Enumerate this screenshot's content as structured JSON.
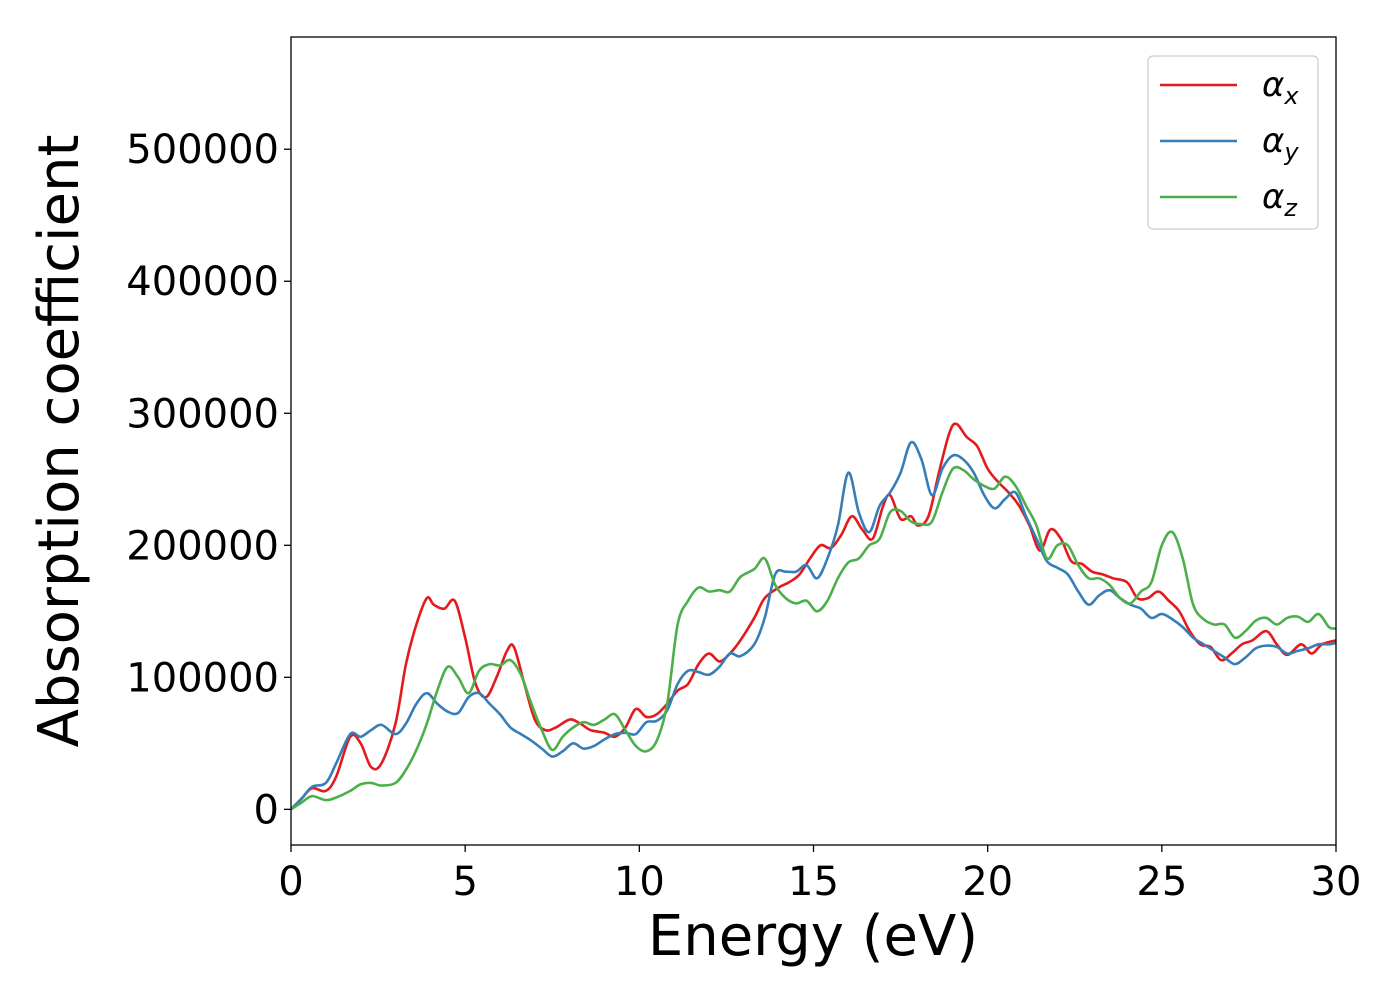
{
  "chart_data": {
    "type": "line",
    "title": "",
    "xlabel": "Energy (eV)",
    "ylabel": "Absorption coefficient",
    "xlim": [
      0,
      30
    ],
    "ylim": [
      -27000,
      585000
    ],
    "xticks": [
      0,
      5,
      10,
      15,
      20,
      25,
      30
    ],
    "yticks": [
      0,
      100000,
      200000,
      300000,
      400000,
      500000
    ],
    "grid": false,
    "legend_position": "top-right",
    "series": [
      {
        "name": "α",
        "subscript": "x",
        "color": "#e41a1c",
        "x": [
          0,
          0.3,
          0.6,
          1.0,
          1.3,
          1.7,
          2.0,
          2.3,
          2.6,
          3.0,
          3.3,
          3.6,
          3.9,
          4.1,
          4.4,
          4.7,
          5.0,
          5.3,
          5.6,
          5.9,
          6.2,
          6.4,
          6.7,
          7.0,
          7.3,
          7.6,
          8.0,
          8.3,
          8.6,
          9.0,
          9.3,
          9.6,
          9.9,
          10.2,
          10.5,
          10.8,
          11.1,
          11.4,
          11.7,
          12.0,
          12.3,
          12.6,
          12.9,
          13.3,
          13.6,
          14.0,
          14.3,
          14.6,
          14.9,
          15.2,
          15.5,
          15.8,
          16.1,
          16.4,
          16.7,
          17.0,
          17.2,
          17.5,
          17.8,
          18.0,
          18.3,
          18.6,
          18.9,
          19.1,
          19.4,
          19.7,
          20.0,
          20.3,
          20.6,
          20.9,
          21.2,
          21.5,
          21.8,
          22.1,
          22.4,
          22.7,
          23.0,
          23.3,
          23.6,
          24.0,
          24.3,
          24.6,
          24.9,
          25.2,
          25.5,
          25.8,
          26.1,
          26.4,
          26.7,
          27.0,
          27.3,
          27.6,
          28.0,
          28.3,
          28.6,
          29.0,
          29.3,
          29.6,
          30.0
        ],
        "values": [
          0,
          8000,
          16000,
          14000,
          25000,
          55000,
          50000,
          32000,
          35000,
          65000,
          110000,
          140000,
          160000,
          155000,
          152000,
          158000,
          130000,
          95000,
          85000,
          100000,
          120000,
          123000,
          95000,
          68000,
          60000,
          62000,
          68000,
          65000,
          60000,
          58000,
          55000,
          62000,
          76000,
          70000,
          72000,
          80000,
          90000,
          95000,
          110000,
          118000,
          112000,
          118000,
          128000,
          145000,
          160000,
          168000,
          172000,
          178000,
          190000,
          200000,
          198000,
          208000,
          222000,
          212000,
          205000,
          230000,
          238000,
          220000,
          222000,
          215000,
          222000,
          255000,
          285000,
          292000,
          282000,
          275000,
          258000,
          248000,
          240000,
          230000,
          215000,
          196000,
          212000,
          205000,
          188000,
          186000,
          180000,
          178000,
          175000,
          172000,
          160000,
          160000,
          165000,
          158000,
          150000,
          135000,
          125000,
          123000,
          113000,
          118000,
          125000,
          128000,
          135000,
          125000,
          117000,
          125000,
          118000,
          125000,
          128000
        ]
      },
      {
        "name": "α",
        "subscript": "y",
        "color": "#377eb8",
        "x": [
          0,
          0.3,
          0.6,
          1.0,
          1.3,
          1.7,
          2.0,
          2.3,
          2.6,
          3.0,
          3.3,
          3.6,
          3.9,
          4.2,
          4.5,
          4.8,
          5.1,
          5.4,
          5.7,
          6.0,
          6.3,
          6.6,
          6.9,
          7.2,
          7.5,
          7.8,
          8.1,
          8.4,
          8.7,
          9.0,
          9.3,
          9.6,
          9.9,
          10.2,
          10.5,
          10.8,
          11.1,
          11.4,
          11.7,
          12.0,
          12.3,
          12.6,
          12.9,
          13.3,
          13.6,
          13.9,
          14.2,
          14.5,
          14.8,
          15.1,
          15.4,
          15.7,
          16.0,
          16.3,
          16.6,
          16.9,
          17.2,
          17.5,
          17.8,
          18.1,
          18.4,
          18.7,
          19.0,
          19.3,
          19.6,
          19.9,
          20.2,
          20.5,
          20.8,
          21.1,
          21.4,
          21.7,
          22.0,
          22.3,
          22.6,
          22.9,
          23.2,
          23.5,
          23.8,
          24.1,
          24.4,
          24.7,
          25.0,
          25.3,
          25.6,
          25.9,
          26.2,
          26.5,
          26.8,
          27.1,
          27.4,
          27.7,
          28.0,
          28.3,
          28.6,
          28.9,
          29.2,
          29.5,
          29.8,
          30.0
        ],
        "values": [
          0,
          8000,
          17000,
          20000,
          35000,
          57000,
          55000,
          60000,
          64000,
          57000,
          65000,
          80000,
          88000,
          80000,
          74000,
          73000,
          85000,
          88000,
          80000,
          72000,
          62000,
          57000,
          52000,
          46000,
          40000,
          44000,
          50000,
          46000,
          48000,
          53000,
          57000,
          58000,
          57000,
          66000,
          67000,
          75000,
          95000,
          105000,
          104000,
          102000,
          108000,
          118000,
          116000,
          125000,
          145000,
          178000,
          180000,
          180000,
          185000,
          175000,
          190000,
          215000,
          255000,
          225000,
          210000,
          230000,
          240000,
          255000,
          278000,
          265000,
          238000,
          258000,
          268000,
          265000,
          255000,
          238000,
          228000,
          235000,
          240000,
          222000,
          205000,
          188000,
          183000,
          178000,
          165000,
          155000,
          162000,
          166000,
          160000,
          155000,
          152000,
          145000,
          148000,
          144000,
          138000,
          130000,
          125000,
          120000,
          115000,
          110000,
          115000,
          122000,
          124000,
          123000,
          118000,
          120000,
          122000,
          125000,
          125000,
          126000
        ]
      },
      {
        "name": "α",
        "subscript": "z",
        "color": "#4daf4a",
        "x": [
          0,
          0.3,
          0.6,
          1.0,
          1.3,
          1.7,
          2.0,
          2.3,
          2.6,
          3.0,
          3.3,
          3.6,
          3.9,
          4.2,
          4.5,
          4.8,
          5.1,
          5.4,
          5.7,
          6.0,
          6.3,
          6.6,
          6.9,
          7.2,
          7.5,
          7.8,
          8.1,
          8.4,
          8.7,
          9.0,
          9.3,
          9.6,
          9.9,
          10.2,
          10.5,
          10.8,
          11.1,
          11.4,
          11.7,
          12.0,
          12.3,
          12.6,
          12.9,
          13.3,
          13.6,
          13.9,
          14.2,
          14.5,
          14.8,
          15.1,
          15.4,
          15.7,
          16.0,
          16.3,
          16.6,
          16.9,
          17.2,
          17.5,
          17.8,
          18.1,
          18.4,
          18.7,
          19.0,
          19.3,
          19.6,
          19.9,
          20.2,
          20.5,
          20.8,
          21.1,
          21.4,
          21.7,
          22.0,
          22.3,
          22.6,
          22.9,
          23.2,
          23.5,
          23.8,
          24.1,
          24.4,
          24.7,
          25.0,
          25.3,
          25.6,
          25.9,
          26.2,
          26.5,
          26.8,
          27.1,
          27.4,
          27.7,
          28.0,
          28.3,
          28.6,
          28.9,
          29.2,
          29.5,
          29.8,
          30.0
        ],
        "values": [
          0,
          5000,
          10000,
          7000,
          9000,
          14000,
          19000,
          20000,
          18000,
          20000,
          30000,
          45000,
          65000,
          90000,
          108000,
          100000,
          88000,
          105000,
          110000,
          109000,
          113000,
          102000,
          80000,
          60000,
          45000,
          55000,
          62000,
          66000,
          64000,
          68000,
          72000,
          60000,
          48000,
          44000,
          52000,
          80000,
          140000,
          158000,
          168000,
          165000,
          166000,
          165000,
          176000,
          182000,
          190000,
          170000,
          160000,
          156000,
          158000,
          150000,
          158000,
          175000,
          187000,
          190000,
          200000,
          205000,
          225000,
          226000,
          218000,
          216000,
          218000,
          240000,
          258000,
          257000,
          250000,
          245000,
          243000,
          252000,
          245000,
          230000,
          215000,
          190000,
          200000,
          200000,
          185000,
          175000,
          175000,
          170000,
          160000,
          156000,
          165000,
          172000,
          200000,
          210000,
          190000,
          155000,
          144000,
          140000,
          140000,
          130000,
          135000,
          143000,
          145000,
          140000,
          145000,
          146000,
          142000,
          148000,
          138000,
          137000
        ]
      }
    ]
  }
}
